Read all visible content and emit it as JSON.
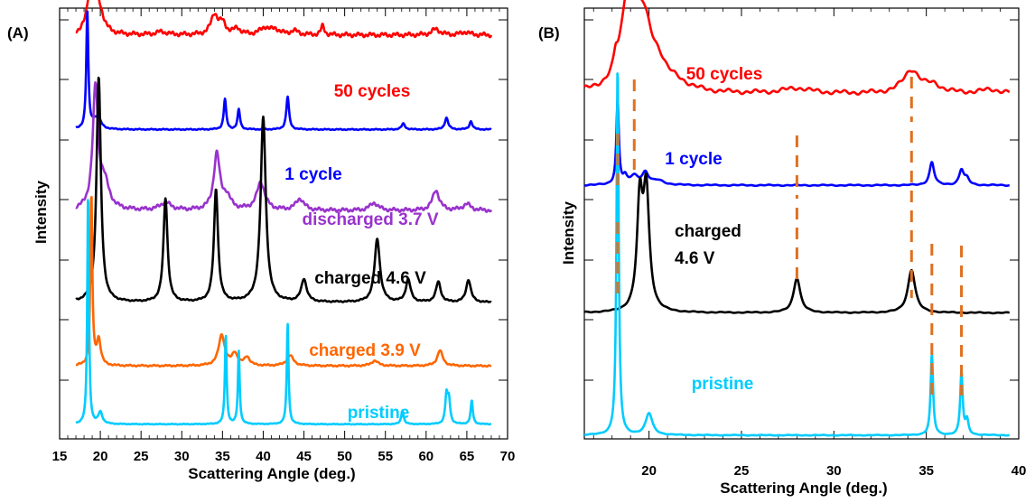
{
  "chart_data": [
    {
      "panel_label": "(A)",
      "type": "line",
      "xlabel": "Scattering Angle (deg.)",
      "ylabel": "Intensity",
      "xlim": [
        15,
        70
      ],
      "xticks": [
        15,
        20,
        25,
        30,
        35,
        40,
        45,
        50,
        55,
        60,
        65,
        70
      ],
      "x_range": [
        17,
        68
      ],
      "series": [
        {
          "name": "50 cycles",
          "color": "#ff0000",
          "baseline": 0.82,
          "peaks": [
            [
              18.6,
              0.07,
              0.35
            ],
            [
              19.1,
              0.82,
              0.45
            ],
            [
              20.0,
              0.14,
              0.6
            ],
            [
              27.5,
              0.03,
              0.8
            ],
            [
              34.0,
              0.2,
              0.5
            ],
            [
              35.0,
              0.11,
              0.5
            ],
            [
              36.8,
              0.06,
              0.5
            ],
            [
              40.2,
              0.07,
              0.7
            ],
            [
              41.5,
              0.05,
              0.6
            ],
            [
              43.8,
              0.04,
              0.6
            ],
            [
              47.3,
              0.09,
              0.25
            ],
            [
              61.2,
              0.06,
              0.6
            ],
            [
              64.8,
              0.03,
              0.6
            ]
          ]
        },
        {
          "name": "1 cycle",
          "color": "#0000ff",
          "baseline": 0.52,
          "peaks": [
            [
              18.4,
              1.0,
              0.15
            ],
            [
              19.3,
              0.06,
              0.4
            ],
            [
              19.8,
              0.07,
              0.4
            ],
            [
              35.3,
              0.26,
              0.18
            ],
            [
              37.0,
              0.17,
              0.18
            ],
            [
              43.0,
              0.28,
              0.2
            ],
            [
              57.2,
              0.05,
              0.25
            ],
            [
              62.5,
              0.1,
              0.25
            ],
            [
              65.5,
              0.07,
              0.22
            ]
          ]
        },
        {
          "name": "discharged 3.7 V",
          "color": "#9933cc",
          "baseline": 0.32,
          "peaks": [
            [
              19.4,
              0.95,
              0.4
            ],
            [
              20.5,
              0.2,
              0.7
            ],
            [
              28.0,
              0.06,
              0.8
            ],
            [
              34.3,
              0.44,
              0.45
            ],
            [
              35.5,
              0.1,
              0.6
            ],
            [
              39.7,
              0.22,
              0.6
            ],
            [
              44.5,
              0.09,
              0.6
            ],
            [
              53.6,
              0.06,
              0.6
            ],
            [
              61.2,
              0.16,
              0.5
            ],
            [
              65.0,
              0.05,
              0.6
            ]
          ]
        },
        {
          "name": "charged 4.6 V",
          "color": "#000000",
          "baseline": 0.02,
          "peaks": [
            [
              19.8,
              1.0,
              0.32
            ],
            [
              28.0,
              0.46,
              0.3
            ],
            [
              34.2,
              0.5,
              0.3
            ],
            [
              40.0,
              0.82,
              0.38
            ],
            [
              45.0,
              0.1,
              0.4
            ],
            [
              54.0,
              0.28,
              0.4
            ],
            [
              57.8,
              0.1,
              0.35
            ],
            [
              61.5,
              0.09,
              0.35
            ],
            [
              65.2,
              0.1,
              0.35
            ]
          ]
        },
        {
          "name": "charged 3.9 V",
          "color": "#ff6600",
          "baseline": 0.02,
          "peaks": [
            [
              18.9,
              1.0,
              0.14
            ],
            [
              19.8,
              0.15,
              0.3
            ],
            [
              34.9,
              0.18,
              0.45
            ],
            [
              36.5,
              0.07,
              0.4
            ],
            [
              38.0,
              0.05,
              0.4
            ],
            [
              43.3,
              0.06,
              0.5
            ],
            [
              53.7,
              0.03,
              0.5
            ],
            [
              61.7,
              0.09,
              0.4
            ]
          ]
        },
        {
          "name": "pristine",
          "color": "#00ccff",
          "baseline": 0.02,
          "peaks": [
            [
              18.5,
              1.0,
              0.12
            ],
            [
              20.0,
              0.05,
              0.3
            ],
            [
              35.4,
              0.38,
              0.13
            ],
            [
              37.0,
              0.31,
              0.13
            ],
            [
              43.0,
              0.43,
              0.13
            ],
            [
              57.1,
              0.06,
              0.18
            ],
            [
              62.5,
              0.12,
              0.18
            ],
            [
              62.8,
              0.1,
              0.18
            ],
            [
              65.6,
              0.1,
              0.16
            ]
          ]
        }
      ]
    },
    {
      "panel_label": "(B)",
      "type": "line",
      "xlabel": "Scattering Angle (deg.)",
      "ylabel": "Intensity",
      "xlim": [
        16.5,
        40
      ],
      "xticks": [
        20,
        25,
        30,
        35,
        40
      ],
      "x_range": [
        16.5,
        39.5
      ],
      "reference_lines_x": [
        18.3,
        19.2,
        28.0,
        34.2,
        35.3,
        36.9
      ],
      "series": [
        {
          "name": "50 cycles",
          "color": "#ff0000",
          "baseline": 0.45,
          "peaks": [
            [
              18.2,
              0.18,
              0.12
            ],
            [
              18.9,
              1.35,
              0.45
            ],
            [
              19.7,
              0.85,
              0.55
            ],
            [
              20.5,
              0.25,
              0.5
            ],
            [
              21.5,
              0.1,
              0.8
            ],
            [
              28.0,
              0.07,
              0.9
            ],
            [
              34.2,
              0.32,
              0.55
            ],
            [
              35.4,
              0.1,
              0.5
            ],
            [
              38.5,
              0.05,
              0.8
            ]
          ]
        },
        {
          "name": "1 cycle",
          "color": "#0000ff",
          "baseline": 0.1,
          "peaks": [
            [
              18.3,
              1.95,
              0.08
            ],
            [
              18.7,
              0.16,
              0.12
            ],
            [
              19.2,
              0.2,
              0.28
            ],
            [
              19.8,
              0.27,
              0.2
            ],
            [
              20.5,
              0.1,
              0.4
            ],
            [
              35.3,
              0.53,
              0.15
            ],
            [
              36.9,
              0.35,
              0.15
            ],
            [
              37.2,
              0.14,
              0.15
            ]
          ]
        },
        {
          "name": "charged 4.6 V",
          "color": "#000000",
          "baseline": 0.05,
          "peaks": [
            [
              19.5,
              1.65,
              0.18
            ],
            [
              19.85,
              1.85,
              0.2
            ],
            [
              28.0,
              0.55,
              0.22
            ],
            [
              34.2,
              0.68,
              0.24
            ]
          ]
        },
        {
          "name": "pristine",
          "color": "#00ccff",
          "baseline": 0.01,
          "peaks": [
            [
              18.3,
              2.05,
              0.07
            ],
            [
              20.0,
              0.12,
              0.22
            ],
            [
              35.3,
              0.45,
              0.08
            ],
            [
              36.9,
              0.35,
              0.08
            ],
            [
              37.2,
              0.08,
              0.1
            ]
          ]
        }
      ]
    }
  ],
  "series_labels_a": {
    "s0": "50 cycles",
    "s1": "1 cycle",
    "s2": "discharged 3.7 V",
    "s3": "charged 4.6 V",
    "s4": "charged 3.9 V",
    "s5": "pristine"
  },
  "series_labels_b": {
    "s0": "50 cycles",
    "s1": "1 cycle",
    "s2_line1": "charged",
    "s2_line2": "4.6 V",
    "s3": "pristine"
  },
  "colors": {
    "red": "#ff0000",
    "blue": "#0000ff",
    "purple": "#9933cc",
    "black": "#000000",
    "orange": "#ff6600",
    "cyan": "#00ccff",
    "dash": "#e07020"
  }
}
